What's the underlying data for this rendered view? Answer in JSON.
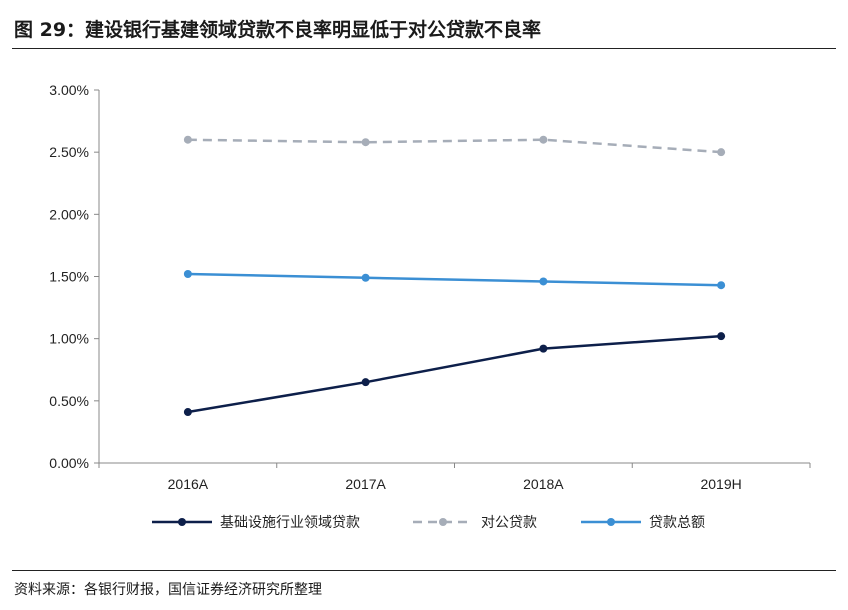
{
  "figure": {
    "title": "图 29：建设银行基建领域贷款不良率明显低于对公贷款不良率",
    "source": "资料来源：各银行财报，国信证券经济研究所整理"
  },
  "chart_data": {
    "type": "line",
    "categories": [
      "2016A",
      "2017A",
      "2018A",
      "2019H"
    ],
    "y_ticks": [
      "0.00%",
      "0.50%",
      "1.00%",
      "1.50%",
      "2.00%",
      "2.50%",
      "3.00%"
    ],
    "ylim": [
      0,
      3.0
    ],
    "y_unit": "%",
    "grid": false,
    "legend_position": "bottom",
    "series": [
      {
        "name": "基础设施行业领域贷款",
        "values": [
          0.41,
          0.65,
          0.92,
          1.02
        ],
        "color": "#0d1f4a",
        "style": "solid"
      },
      {
        "name": "对公贷款",
        "values": [
          2.6,
          2.58,
          2.6,
          2.5
        ],
        "color": "#a6adb8",
        "style": "dashed"
      },
      {
        "name": "贷款总额",
        "values": [
          1.52,
          1.49,
          1.46,
          1.43
        ],
        "color": "#3b8fd4",
        "style": "solid"
      }
    ]
  }
}
